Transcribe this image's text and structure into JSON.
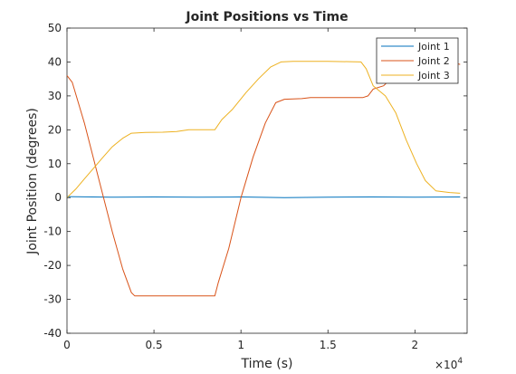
{
  "chart_data": {
    "type": "line",
    "title": "Joint Positions vs Time",
    "xlabel": "Time (s)",
    "ylabel": "Joint Position (degrees)",
    "x_multiplier": "×10",
    "x_multiplier_exp": "4",
    "xlim": [
      0,
      23000
    ],
    "ylim": [
      -40,
      50
    ],
    "x_ticks": [
      0,
      5000,
      10000,
      15000,
      20000
    ],
    "x_tick_labels": [
      "0",
      "0.5",
      "1",
      "1.5",
      "2"
    ],
    "y_ticks": [
      -40,
      -30,
      -20,
      -10,
      0,
      10,
      20,
      30,
      40,
      50
    ],
    "y_tick_labels": [
      "-40",
      "-30",
      "-20",
      "-10",
      "0",
      "10",
      "20",
      "30",
      "40",
      "50"
    ],
    "grid": false,
    "legend_position": "top-right",
    "series": [
      {
        "name": "Joint 1",
        "color": "#0072BD",
        "points": [
          [
            0,
            0.3
          ],
          [
            2500,
            0.1
          ],
          [
            5000,
            0.2
          ],
          [
            7500,
            0.1
          ],
          [
            10000,
            0.2
          ],
          [
            12500,
            0
          ],
          [
            15000,
            0.1
          ],
          [
            17500,
            0.2
          ],
          [
            20000,
            0.1
          ],
          [
            22600,
            0.2
          ]
        ]
      },
      {
        "name": "Joint 2",
        "color": "#D95319",
        "points": [
          [
            0,
            36
          ],
          [
            300,
            34
          ],
          [
            1000,
            22
          ],
          [
            1800,
            6
          ],
          [
            2600,
            -10
          ],
          [
            3200,
            -21
          ],
          [
            3700,
            -28
          ],
          [
            3900,
            -29
          ],
          [
            8500,
            -29
          ],
          [
            8700,
            -25
          ],
          [
            9300,
            -15
          ],
          [
            10000,
            0
          ],
          [
            10700,
            12
          ],
          [
            11400,
            22
          ],
          [
            12000,
            28
          ],
          [
            12500,
            29
          ],
          [
            13500,
            29.2
          ],
          [
            14000,
            29.5
          ],
          [
            17000,
            29.5
          ],
          [
            17300,
            30
          ],
          [
            17600,
            32
          ],
          [
            18200,
            33
          ],
          [
            18800,
            36
          ],
          [
            19500,
            38
          ],
          [
            20500,
            39
          ],
          [
            21500,
            39.3
          ],
          [
            22400,
            39.5
          ],
          [
            22600,
            39.3
          ]
        ]
      },
      {
        "name": "Joint 3",
        "color": "#EDB120",
        "points": [
          [
            0,
            0
          ],
          [
            500,
            2.5
          ],
          [
            1000,
            5.5
          ],
          [
            1500,
            8.5
          ],
          [
            2000,
            11.5
          ],
          [
            2600,
            15
          ],
          [
            3200,
            17.5
          ],
          [
            3700,
            19
          ],
          [
            4500,
            19.2
          ],
          [
            5500,
            19.3
          ],
          [
            6300,
            19.5
          ],
          [
            7000,
            20
          ],
          [
            8500,
            20
          ],
          [
            8900,
            23
          ],
          [
            9500,
            26
          ],
          [
            10300,
            31
          ],
          [
            11000,
            35
          ],
          [
            11700,
            38.5
          ],
          [
            12300,
            40
          ],
          [
            13000,
            40.2
          ],
          [
            15000,
            40.2
          ],
          [
            16900,
            40
          ],
          [
            17200,
            38
          ],
          [
            17600,
            33
          ],
          [
            18300,
            30
          ],
          [
            18900,
            25
          ],
          [
            19500,
            17
          ],
          [
            20100,
            10
          ],
          [
            20600,
            5
          ],
          [
            21200,
            2
          ],
          [
            22000,
            1.5
          ],
          [
            22600,
            1.3
          ]
        ]
      }
    ]
  }
}
